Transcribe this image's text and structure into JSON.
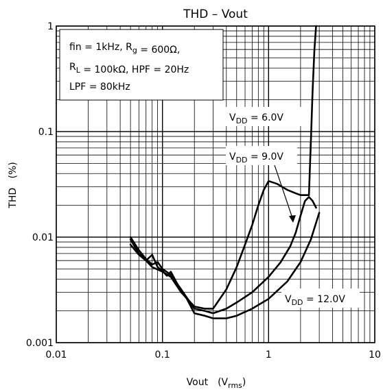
{
  "chart_data": {
    "type": "line",
    "title": "THD – Vout",
    "ylabel": "THD   (%)",
    "xlabel": "Vout",
    "xunit": "V",
    "xunit_sub": "rms",
    "xscale": "log",
    "yscale": "log",
    "xlim": [
      0.01,
      10
    ],
    "ylim": [
      0.001,
      1
    ],
    "xticks": [
      0.01,
      0.1,
      1,
      10
    ],
    "yticks": [
      0.001,
      0.01,
      0.1,
      1
    ],
    "xtick_labels": [
      "0.01",
      "0.1",
      "1",
      "10"
    ],
    "ytick_labels": [
      "0.001",
      "0.01",
      "0.1",
      "1"
    ],
    "grid": true,
    "conditions": {
      "line1": {
        "parts": [
          {
            "t": "fin = 1kHz, R"
          },
          {
            "t": "g",
            "sub": true
          },
          {
            "t": " = 600Ω,"
          }
        ]
      },
      "line2": {
        "parts": [
          {
            "t": "R"
          },
          {
            "t": "L",
            "sub": true
          },
          {
            "t": " = 100kΩ, HPF = 20Hz"
          }
        ]
      },
      "line3": {
        "parts": [
          {
            "t": "LPF = 80kHz"
          }
        ]
      }
    },
    "series": [
      {
        "label_main": "V",
        "label_sub": "DD",
        "label_value": " = 6.0V",
        "x": [
          0.05,
          0.06,
          0.07,
          0.08,
          0.1,
          0.12,
          0.15,
          0.2,
          0.25,
          0.3,
          0.4,
          0.5,
          0.6,
          0.7,
          0.8,
          0.9,
          1.0,
          1.2,
          1.5,
          1.8,
          2.0,
          2.2,
          2.4,
          2.5,
          2.6,
          2.7,
          2.8
        ],
        "y": [
          0.0085,
          0.0068,
          0.006,
          0.0052,
          0.0047,
          0.0042,
          0.003,
          0.0022,
          0.0021,
          0.0021,
          0.0032,
          0.0052,
          0.0085,
          0.013,
          0.02,
          0.028,
          0.034,
          0.032,
          0.028,
          0.026,
          0.025,
          0.025,
          0.025,
          0.08,
          0.25,
          0.6,
          1.0
        ]
      },
      {
        "label_main": "V",
        "label_sub": "DD",
        "label_value": " = 9.0V",
        "x": [
          0.05,
          0.06,
          0.07,
          0.08,
          0.09,
          0.1,
          0.12,
          0.15,
          0.2,
          0.25,
          0.3,
          0.4,
          0.5,
          0.7,
          1.0,
          1.3,
          1.6,
          1.8,
          2.0,
          2.2,
          2.4,
          2.6,
          2.8
        ],
        "y": [
          0.01,
          0.0075,
          0.0062,
          0.0055,
          0.0058,
          0.005,
          0.0044,
          0.0032,
          0.0021,
          0.002,
          0.0019,
          0.0021,
          0.0024,
          0.003,
          0.0042,
          0.0058,
          0.0082,
          0.011,
          0.016,
          0.022,
          0.024,
          0.022,
          0.019
        ]
      },
      {
        "label_main": "V",
        "label_sub": "DD",
        "label_value": " = 12.0V",
        "x": [
          0.05,
          0.06,
          0.07,
          0.08,
          0.09,
          0.1,
          0.11,
          0.12,
          0.14,
          0.15,
          0.17,
          0.2,
          0.25,
          0.3,
          0.4,
          0.5,
          0.7,
          1.0,
          1.5,
          2.0,
          2.5,
          3.0
        ],
        "y": [
          0.0095,
          0.007,
          0.006,
          0.0068,
          0.0052,
          0.0048,
          0.0043,
          0.0047,
          0.0035,
          0.0031,
          0.0026,
          0.0019,
          0.0018,
          0.0017,
          0.0017,
          0.0018,
          0.0021,
          0.0026,
          0.0038,
          0.0058,
          0.0095,
          0.017
        ]
      }
    ]
  }
}
